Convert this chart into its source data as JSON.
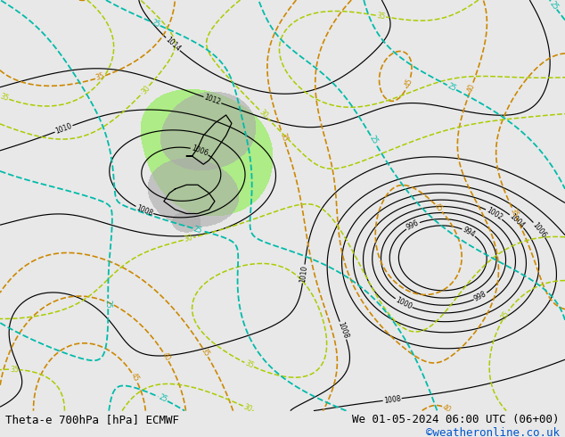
{
  "title_left": "Theta-e 700hPa [hPa] ECMWF",
  "title_right": "We 01-05-2024 06:00 UTC (06+00)",
  "copyright": "©weatheronline.co.uk",
  "bg_color": "#e8e8e8",
  "map_bg": "#e8e8e8",
  "footer_bg": "#ffffff",
  "footer_text_color": "#000000",
  "copyright_color": "#0055cc",
  "font_size_footer": 9,
  "fig_width": 6.34,
  "fig_height": 4.9,
  "land_color": "#aaaaaa",
  "green_fill_color": "#99ee66"
}
